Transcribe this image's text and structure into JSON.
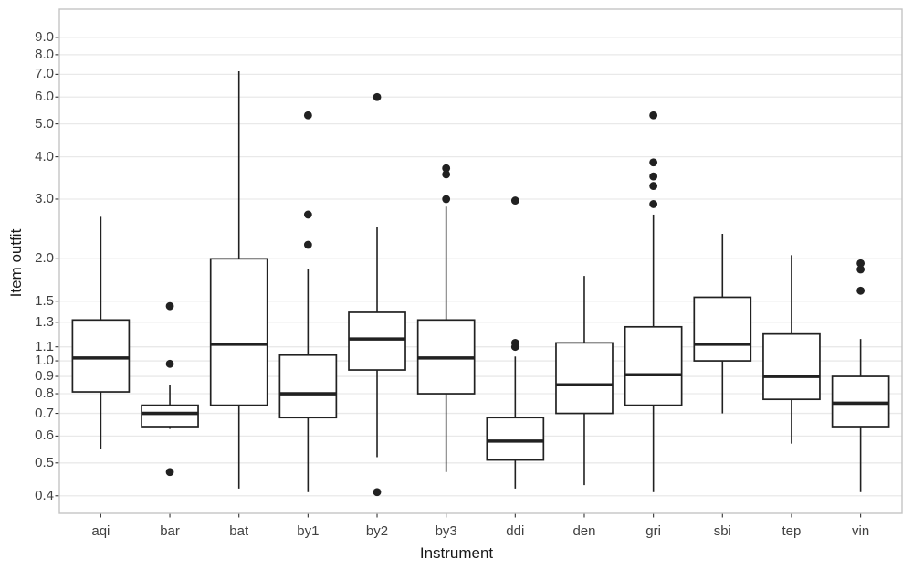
{
  "chart_data": {
    "type": "boxplot",
    "title": "",
    "xlabel": "Instrument",
    "ylabel": "Item outfit",
    "y_scale": "log10",
    "ylim": [
      0.355,
      10.9
    ],
    "grid": "major-only",
    "legend": "none",
    "y_ticks": [
      {
        "value": 9.0,
        "label": "9.0"
      },
      {
        "value": 8.0,
        "label": "8.0"
      },
      {
        "value": 7.0,
        "label": "7.0"
      },
      {
        "value": 6.0,
        "label": "6.0"
      },
      {
        "value": 5.0,
        "label": "5.0"
      },
      {
        "value": 4.0,
        "label": "4.0"
      },
      {
        "value": 3.0,
        "label": "3.0"
      },
      {
        "value": 2.0,
        "label": "2.0"
      },
      {
        "value": 1.5,
        "label": "1.5"
      },
      {
        "value": 1.3,
        "label": "1.3"
      },
      {
        "value": 1.1,
        "label": "1.1"
      },
      {
        "value": 1.0,
        "label": "1.0"
      },
      {
        "value": 0.9,
        "label": "0.9"
      },
      {
        "value": 0.8,
        "label": "0.8"
      },
      {
        "value": 0.7,
        "label": "0.7"
      },
      {
        "value": 0.6,
        "label": "0.6"
      },
      {
        "value": 0.5,
        "label": "0.5"
      },
      {
        "value": 0.4,
        "label": "0.4"
      }
    ],
    "categories": [
      "aqi",
      "bar",
      "bat",
      "by1",
      "by2",
      "by3",
      "ddi",
      "den",
      "gri",
      "sbi",
      "tep",
      "vin"
    ],
    "series": [
      {
        "category": "aqi",
        "whisker_low": 0.55,
        "q1": 0.81,
        "median": 1.02,
        "q3": 1.32,
        "whisker_high": 2.66,
        "outliers": []
      },
      {
        "category": "bar",
        "whisker_low": 0.63,
        "q1": 0.64,
        "median": 0.7,
        "q3": 0.74,
        "whisker_high": 0.85,
        "outliers": [
          1.45,
          0.98,
          0.47
        ]
      },
      {
        "category": "bat",
        "whisker_low": 0.42,
        "q1": 0.74,
        "median": 1.12,
        "q3": 2.0,
        "whisker_high": 7.15,
        "outliers": []
      },
      {
        "category": "by1",
        "whisker_low": 0.41,
        "q1": 0.68,
        "median": 0.8,
        "q3": 1.04,
        "whisker_high": 1.87,
        "outliers": [
          5.3,
          2.7,
          2.2
        ]
      },
      {
        "category": "by2",
        "whisker_low": 0.52,
        "q1": 0.94,
        "median": 1.16,
        "q3": 1.39,
        "whisker_high": 2.49,
        "outliers": [
          6.0,
          0.41
        ]
      },
      {
        "category": "by3",
        "whisker_low": 0.47,
        "q1": 0.8,
        "median": 1.02,
        "q3": 1.32,
        "whisker_high": 2.85,
        "outliers": [
          3.7,
          3.55,
          3.0
        ]
      },
      {
        "category": "ddi",
        "whisker_low": 0.42,
        "q1": 0.51,
        "median": 0.58,
        "q3": 0.68,
        "whisker_high": 1.03,
        "outliers": [
          2.97,
          1.13,
          1.1
        ]
      },
      {
        "category": "den",
        "whisker_low": 0.43,
        "q1": 0.7,
        "median": 0.85,
        "q3": 1.13,
        "whisker_high": 1.78,
        "outliers": []
      },
      {
        "category": "gri",
        "whisker_low": 0.41,
        "q1": 0.74,
        "median": 0.91,
        "q3": 1.26,
        "whisker_high": 2.7,
        "outliers": [
          5.3,
          3.85,
          3.5,
          3.28,
          2.9
        ]
      },
      {
        "category": "sbi",
        "whisker_low": 0.7,
        "q1": 1.0,
        "median": 1.12,
        "q3": 1.54,
        "whisker_high": 2.37,
        "outliers": []
      },
      {
        "category": "tep",
        "whisker_low": 0.57,
        "q1": 0.77,
        "median": 0.9,
        "q3": 1.2,
        "whisker_high": 2.05,
        "outliers": []
      },
      {
        "category": "vin",
        "whisker_low": 0.41,
        "q1": 0.64,
        "median": 0.75,
        "q3": 0.9,
        "whisker_high": 1.16,
        "outliers": [
          1.94,
          1.86,
          1.61
        ]
      }
    ]
  },
  "colors": {
    "background": "#ffffff",
    "panel_background": "#ffffff",
    "panel_border": "#c4c4c4",
    "gridline": "#e9e9e9",
    "box_stroke": "#212121",
    "outlier_fill": "#212121",
    "tick_mark": "#333333",
    "tick_text": "#404040",
    "title_text": "#1a1a1a"
  }
}
